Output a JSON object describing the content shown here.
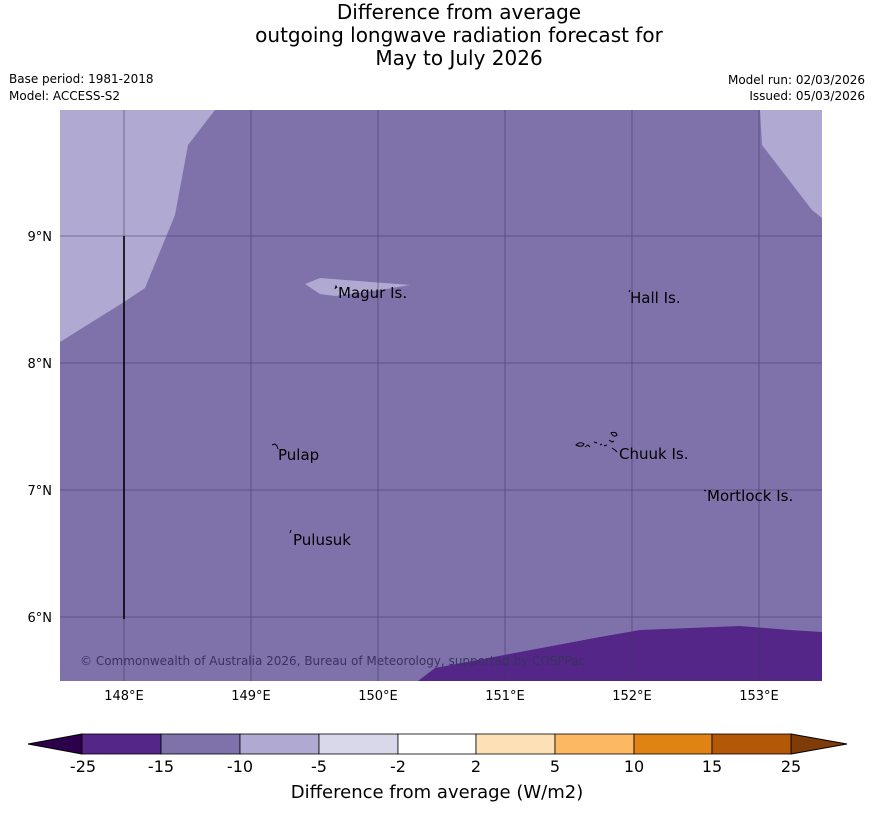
{
  "title": {
    "line1": "Difference from average",
    "line2": "outgoing longwave radiation forecast for",
    "line3": "May to July 2026"
  },
  "meta": {
    "base_period": "Base period: 1981-2018",
    "model": "Model: ACCESS-S2",
    "model_run": "Model run: 02/03/2026",
    "issued": "Issued: 05/03/2026"
  },
  "map": {
    "lat_labels": [
      "9°N",
      "8°N",
      "7°N",
      "6°N"
    ],
    "lon_labels": [
      "148°E",
      "149°E",
      "150°E",
      "151°E",
      "152°E",
      "153°E"
    ],
    "places": [
      "Magur Is.",
      "Hall Is.",
      "Pulap",
      "Chuuk Is.",
      "Mortlock Is.",
      "Pulusuk"
    ],
    "copyright": "© Commonwealth of Australia 2026, Bureau of Meteorology, supported by COSPPac"
  },
  "colorbar": {
    "label": "Difference from average (W/m2)",
    "ticks": [
      "-25",
      "-15",
      "-10",
      "-5",
      "-2",
      "2",
      "5",
      "10",
      "15",
      "25"
    ],
    "colors": {
      "lt_-25": "#2d004b",
      "-25_-15": "#542688",
      "-15_-10": "#7f72aa",
      "-10_-5": "#b0aad2",
      "-5_-2": "#d9d8ea",
      "-2_2": "#ffffff",
      "2_5": "#fde0b6",
      "5_10": "#fdb863",
      "10_15": "#e08214",
      "15_25": "#b35806",
      "gt_25": "#7f3b08"
    }
  }
}
